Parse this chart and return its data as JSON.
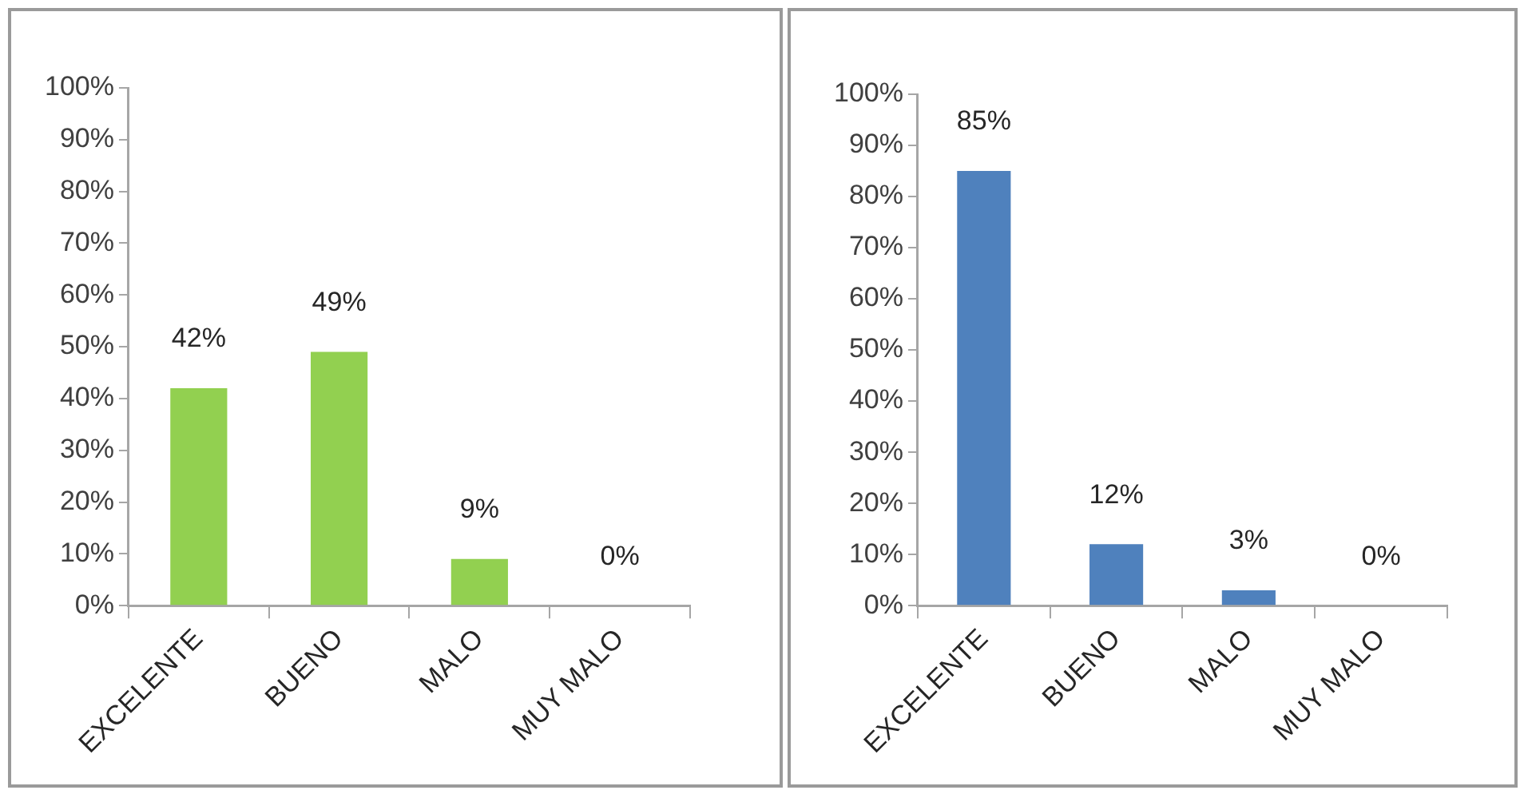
{
  "chart_data": [
    {
      "type": "bar",
      "categories": [
        "EXCELENTE",
        "BUENO",
        "MALO",
        "MUY MALO"
      ],
      "values": [
        42,
        49,
        9,
        0
      ],
      "color": "#92d050",
      "value_labels": [
        "42%",
        "49%",
        "9%",
        "0%"
      ],
      "ylim": [
        0,
        100
      ],
      "yticks": [
        {
          "value": 0,
          "label": "0%"
        },
        {
          "value": 10,
          "label": "10%"
        },
        {
          "value": 20,
          "label": "20%"
        },
        {
          "value": 30,
          "label": "30%"
        },
        {
          "value": 40,
          "label": "40%"
        },
        {
          "value": 50,
          "label": "50%"
        },
        {
          "value": 60,
          "label": "60%"
        },
        {
          "value": 70,
          "label": "70%"
        },
        {
          "value": 80,
          "label": "80%"
        },
        {
          "value": 90,
          "label": "90%"
        },
        {
          "value": 100,
          "label": "100%"
        }
      ]
    },
    {
      "type": "bar",
      "categories": [
        "EXCELENTE",
        "BUENO",
        "MALO",
        "MUY MALO"
      ],
      "values": [
        85,
        12,
        3,
        0
      ],
      "color": "#4f81bd",
      "value_labels": [
        "85%",
        "12%",
        "3%",
        "0%"
      ],
      "ylim": [
        0,
        100
      ],
      "yticks": [
        {
          "value": 0,
          "label": "0%"
        },
        {
          "value": 10,
          "label": "10%"
        },
        {
          "value": 20,
          "label": "20%"
        },
        {
          "value": 30,
          "label": "30%"
        },
        {
          "value": 40,
          "label": "40%"
        },
        {
          "value": 50,
          "label": "50%"
        },
        {
          "value": 60,
          "label": "60%"
        },
        {
          "value": 70,
          "label": "70%"
        },
        {
          "value": 80,
          "label": "80%"
        },
        {
          "value": 90,
          "label": "90%"
        },
        {
          "value": 100,
          "label": "100%"
        }
      ]
    }
  ]
}
